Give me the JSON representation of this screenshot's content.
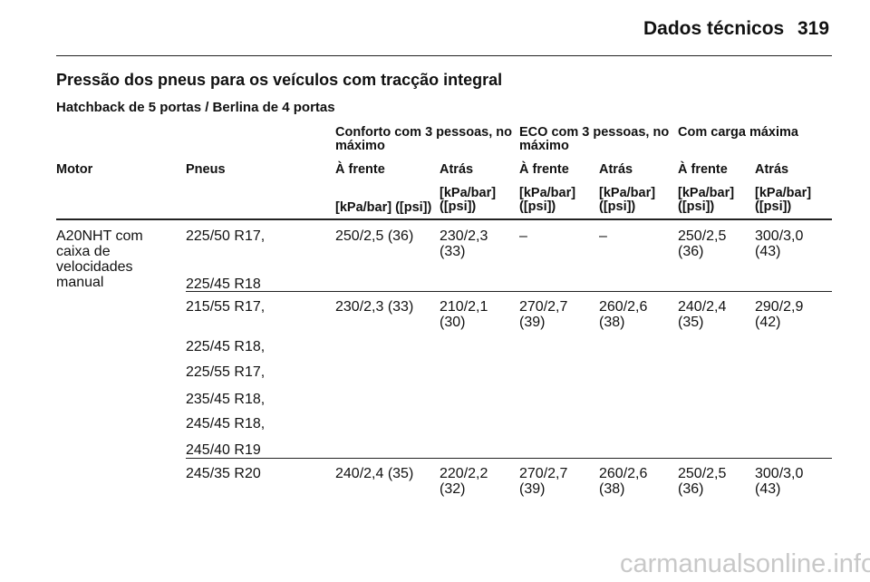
{
  "header": {
    "title": "Dados técnicos",
    "page": "319"
  },
  "section_title": "Pressão dos pneus para os veículos com tracção integral",
  "subtitle": "Hatchback de 5 portas / Berlina de 4 portas",
  "table": {
    "groups": [
      "Conforto com 3 pessoas, no máximo",
      "ECO com 3 pessoas, no máximo",
      "Com carga máxima"
    ],
    "columns": [
      "Motor",
      "Pneus",
      "À frente",
      "Atrás",
      "À frente",
      "Atrás",
      "À frente",
      "Atrás"
    ],
    "units": [
      "[kPa/bar] ([psi])",
      "[kPa/bar] ([psi])",
      "[kPa/bar] ([psi])",
      "[kPa/bar] ([psi])",
      "[kPa/bar] ([psi])",
      "[kPa/bar] ([psi])"
    ],
    "rows": [
      {
        "motor": "A20NHT com caixa de velocidades manual",
        "tyres": [
          "225/50 R17,",
          "225/45 R18"
        ],
        "values": [
          "250/2,5 (36)",
          "230/2,3 (33)",
          "–",
          "–",
          "250/2,5 (36)",
          "300/3,0 (43)"
        ]
      },
      {
        "tyres": [
          "215/55 R17,",
          "225/45 R18,",
          "225/55 R17,",
          "235/45 R18,",
          "245/45 R18,",
          "245/40 R19"
        ],
        "values": [
          "230/2,3 (33)",
          "210/2,1 (30)",
          "270/2,7 (39)",
          "260/2,6 (38)",
          "240/2,4 (35)",
          "290/2,9 (42)"
        ]
      },
      {
        "tyres": [
          "245/35 R20"
        ],
        "values": [
          "240/2,4 (35)",
          "220/2,2 (32)",
          "270/2,7 (39)",
          "260/2,6 (38)",
          "250/2,5 (36)",
          "300/3,0 (43)"
        ]
      }
    ]
  },
  "watermark": "carmanualsonline.info"
}
